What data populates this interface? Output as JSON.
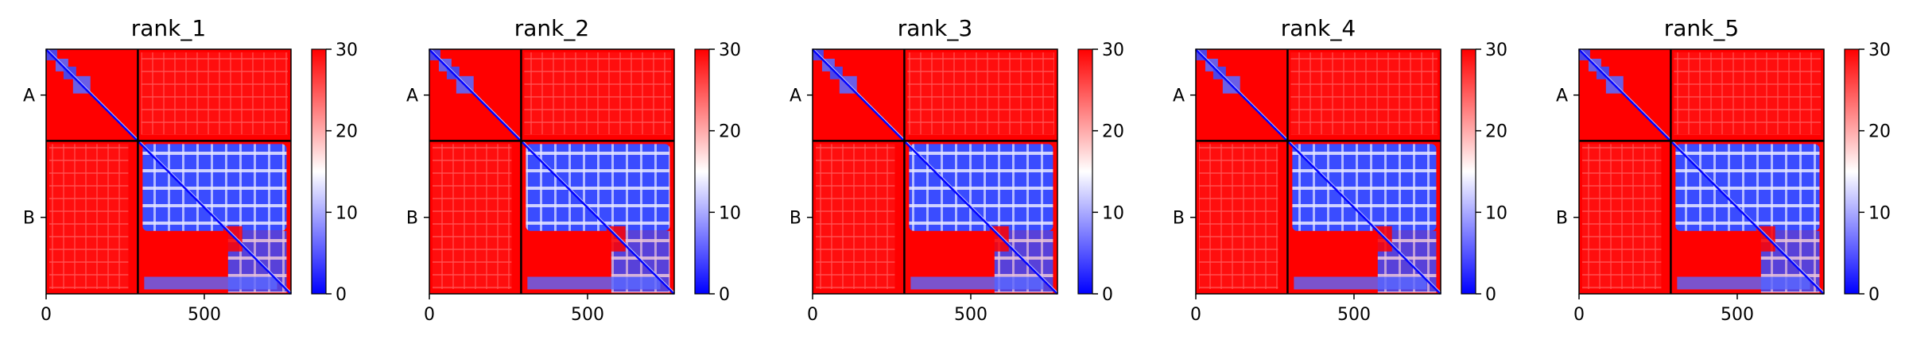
{
  "figure": {
    "colormap": {
      "low": "#0000ff",
      "mid": "#ffffff",
      "high": "#ff0000"
    },
    "divider_color": "#000000"
  },
  "chart_data": [
    {
      "type": "heatmap",
      "title": "rank_1",
      "x_ticks": [
        0,
        500
      ],
      "xlim": [
        0,
        774
      ],
      "chain_labels": [
        "A",
        "B"
      ],
      "chain_ranges": [
        [
          0,
          290
        ],
        [
          290,
          774
        ]
      ],
      "colorbar": {
        "min": 0,
        "max": 30,
        "ticks": [
          0,
          10,
          20,
          30
        ]
      }
    },
    {
      "type": "heatmap",
      "title": "rank_2",
      "x_ticks": [
        0,
        500
      ],
      "xlim": [
        0,
        774
      ],
      "chain_labels": [
        "A",
        "B"
      ],
      "chain_ranges": [
        [
          0,
          290
        ],
        [
          290,
          774
        ]
      ],
      "colorbar": {
        "min": 0,
        "max": 30,
        "ticks": [
          0,
          10,
          20,
          30
        ]
      }
    },
    {
      "type": "heatmap",
      "title": "rank_3",
      "x_ticks": [
        0,
        500
      ],
      "xlim": [
        0,
        774
      ],
      "chain_labels": [
        "A",
        "B"
      ],
      "chain_ranges": [
        [
          0,
          290
        ],
        [
          290,
          774
        ]
      ],
      "colorbar": {
        "min": 0,
        "max": 30,
        "ticks": [
          0,
          10,
          20,
          30
        ]
      }
    },
    {
      "type": "heatmap",
      "title": "rank_4",
      "x_ticks": [
        0,
        500
      ],
      "xlim": [
        0,
        774
      ],
      "chain_labels": [
        "A",
        "B"
      ],
      "chain_ranges": [
        [
          0,
          290
        ],
        [
          290,
          774
        ]
      ],
      "colorbar": {
        "min": 0,
        "max": 30,
        "ticks": [
          0,
          10,
          20,
          30
        ]
      }
    },
    {
      "type": "heatmap",
      "title": "rank_5",
      "x_ticks": [
        0,
        500
      ],
      "xlim": [
        0,
        774
      ],
      "chain_labels": [
        "A",
        "B"
      ],
      "chain_ranges": [
        [
          0,
          290
        ],
        [
          290,
          774
        ]
      ],
      "colorbar": {
        "min": 0,
        "max": 30,
        "ticks": [
          0,
          10,
          20,
          30
        ]
      }
    }
  ]
}
